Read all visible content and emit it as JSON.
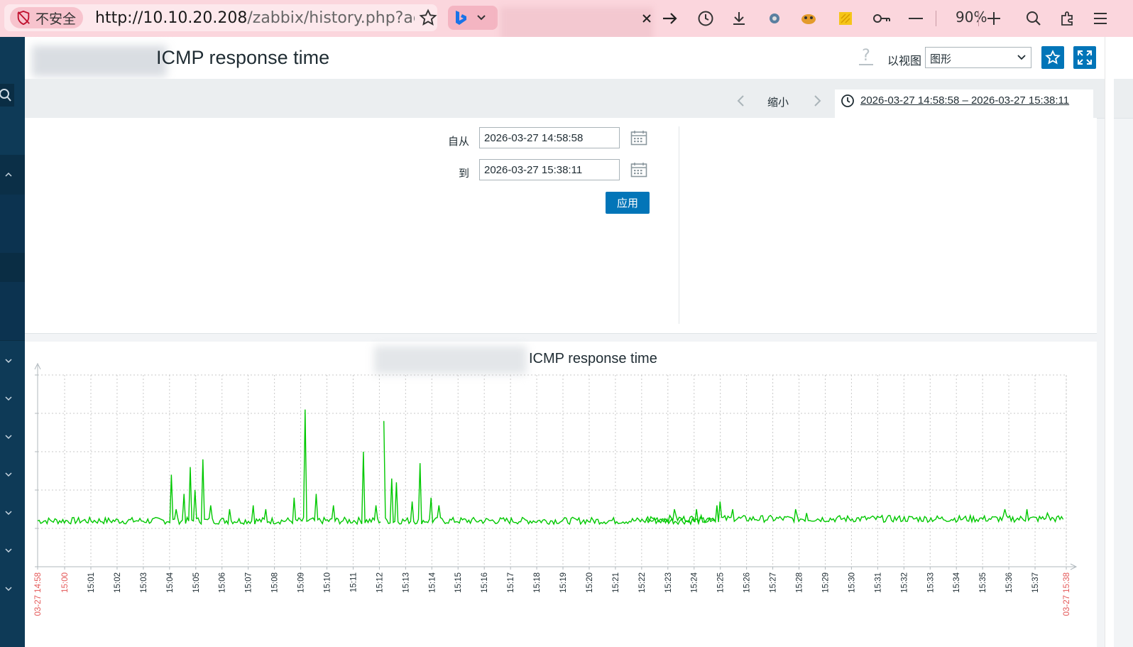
{
  "browser": {
    "security_label": "不安全",
    "url_main": "http://10.10.20.208",
    "url_rest": "/zabbix/history.php?action",
    "zoom": "90%",
    "icons": [
      "shield-off-icon",
      "star-icon",
      "bing-icon",
      "chevron-down-icon",
      "close-icon",
      "arrow-right-icon",
      "history-icon",
      "download-icon",
      "extension-icon",
      "extension-icon",
      "note-icon",
      "key-icon",
      "minus-icon",
      "plus-icon",
      "search-icon",
      "puzzle-icon",
      "menu-icon"
    ]
  },
  "header": {
    "title": "ICMP response time",
    "help": "?",
    "view_as_label": "以视图",
    "view_as_value": "图形",
    "view_as_options": [
      "图形"
    ]
  },
  "filter": {
    "zoom_out": "缩小",
    "time_range": "2026-03-27 14:58:58 – 2026-03-27 15:38:11",
    "from_label": "自从",
    "from_value": "2026-03-27 14:58:58",
    "to_label": "到",
    "to_value": "2026-03-27 15:38:11",
    "apply_label": "应用"
  },
  "graph": {
    "title": "ICMP response time"
  },
  "chart_data": {
    "type": "line",
    "title": "ICMP response time",
    "series": [
      {
        "color": "#00c800"
      }
    ],
    "x_tick_labels": [
      "03-27 14:58",
      "15:00",
      "15:01",
      "15:02",
      "15:03",
      "15:04",
      "15:05",
      "15:06",
      "15:07",
      "15:08",
      "15:09",
      "15:10",
      "15:11",
      "15:12",
      "15:13",
      "15:14",
      "15:15",
      "15:16",
      "15:17",
      "15:18",
      "15:19",
      "15:20",
      "15:21",
      "15:22",
      "15:23",
      "15:24",
      "15:25",
      "15:26",
      "15:27",
      "15:28",
      "15:29",
      "15:30",
      "15:31",
      "15:32",
      "15:33",
      "15:34",
      "15:35",
      "15:36",
      "15:37",
      "03-27 15:38"
    ],
    "x_range_min": [
      0,
      39.22
    ],
    "y_range_rel": [
      0,
      5
    ],
    "grid": true,
    "segments": [
      {
        "x_min": [
          0,
          13.1
        ],
        "base": 1.2,
        "spikes": [
          [
            5.1,
            2.4
          ],
          [
            5.3,
            1.5
          ],
          [
            5.6,
            1.9
          ],
          [
            5.8,
            2.6
          ],
          [
            6.0,
            2.0
          ],
          [
            6.3,
            2.8
          ],
          [
            6.6,
            1.6
          ],
          [
            7.3,
            1.5
          ],
          [
            8.2,
            1.6
          ],
          [
            8.7,
            1.5
          ],
          [
            9.8,
            1.8
          ],
          [
            10.2,
            4.1
          ],
          [
            10.6,
            1.9
          ],
          [
            11.3,
            1.6
          ],
          [
            12.4,
            3.0
          ],
          [
            12.9,
            1.6
          ],
          [
            13.2,
            3.8
          ]
        ]
      },
      {
        "x_min": [
          13.2,
          25.8
        ],
        "base": 1.2,
        "spikes": [
          [
            13.2,
            3.8
          ],
          [
            13.5,
            2.3
          ],
          [
            13.7,
            2.2
          ],
          [
            14.3,
            1.7
          ],
          [
            14.6,
            2.7
          ],
          [
            15.0,
            1.8
          ],
          [
            15.3,
            1.6
          ]
        ]
      },
      {
        "x_min": [
          23.2,
          39.1
        ],
        "base": 1.25,
        "spikes": [
          [
            24.3,
            1.5
          ],
          [
            25.1,
            1.5
          ],
          [
            25.9,
            1.6
          ],
          [
            26.0,
            1.7
          ],
          [
            26.5,
            1.5
          ],
          [
            28.9,
            1.5
          ],
          [
            29.3,
            1.4
          ],
          [
            36.9,
            1.5
          ],
          [
            37.7,
            1.5
          ],
          [
            38.5,
            1.4
          ]
        ]
      }
    ]
  }
}
